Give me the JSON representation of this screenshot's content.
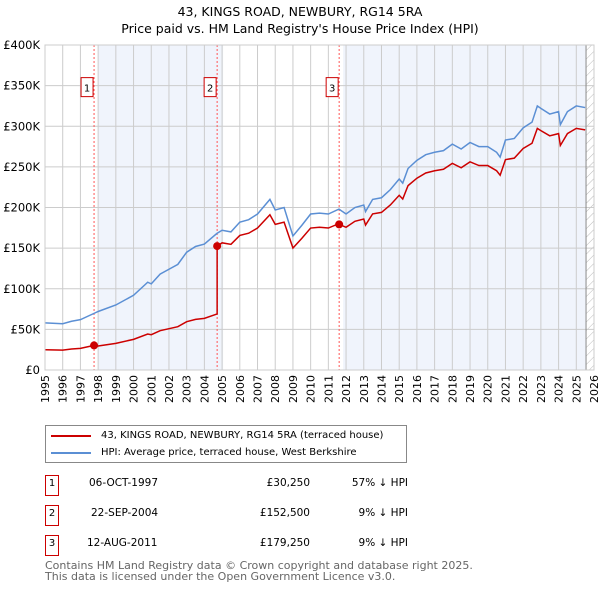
{
  "chart_data": {
    "type": "line",
    "title": "43, KINGS ROAD, NEWBURY, RG14 5RA",
    "subtitle": "Price paid vs. HM Land Registry's House Price Index (HPI)",
    "ylim": [
      0,
      400000
    ],
    "xlim": [
      1995,
      2026
    ],
    "y_ticks": [
      {
        "v": 0,
        "l": "£0"
      },
      {
        "v": 50000,
        "l": "£50K"
      },
      {
        "v": 100000,
        "l": "£100K"
      },
      {
        "v": 150000,
        "l": "£150K"
      },
      {
        "v": 200000,
        "l": "£200K"
      },
      {
        "v": 250000,
        "l": "£250K"
      },
      {
        "v": 300000,
        "l": "£300K"
      },
      {
        "v": 350000,
        "l": "£350K"
      },
      {
        "v": 400000,
        "l": "£400K"
      }
    ],
    "x_ticks": [
      "1995",
      "1996",
      "1997",
      "1998",
      "1999",
      "2000",
      "2001",
      "2002",
      "2003",
      "2004",
      "2005",
      "2006",
      "2007",
      "2008",
      "2009",
      "2010",
      "2011",
      "2012",
      "2013",
      "2014",
      "2015",
      "2016",
      "2017",
      "2018",
      "2019",
      "2020",
      "2021",
      "2022",
      "2023",
      "2024",
      "2025",
      "2026"
    ],
    "grid": true,
    "series": [
      {
        "name": "43, KINGS ROAD, NEWBURY, RG14 5RA (terraced house)",
        "color": "#cc0000"
      },
      {
        "name": "HPI: Average price, terraced house, West Berkshire",
        "color": "#5b8fd4",
        "x": [
          1995,
          1996,
          1996.5,
          1997,
          1997.8,
          1998,
          1999,
          2000,
          2000.8,
          2001,
          2001.5,
          2002,
          2002.5,
          2003,
          2003.5,
          2004,
          2004.7,
          2005,
          2005.5,
          2006,
          2006.5,
          2007,
          2007.7,
          2008,
          2008.5,
          2009,
          2009.5,
          2010,
          2010.5,
          2011,
          2011.6,
          2012,
          2012.5,
          2013,
          2013.1,
          2013.5,
          2014,
          2014.5,
          2015,
          2015.2,
          2015.5,
          2016,
          2016.5,
          2017,
          2017.5,
          2018,
          2018.5,
          2019,
          2019.5,
          2020,
          2020.5,
          2020.7,
          2021,
          2021.5,
          2022,
          2022.5,
          2022.8,
          2023,
          2023.5,
          2024,
          2024.1,
          2024.5,
          2025,
          2025.5
        ],
        "values": [
          58000,
          57000,
          60000,
          62000,
          70000,
          72000,
          80000,
          92000,
          108000,
          106000,
          118000,
          124000,
          130000,
          145000,
          152000,
          155000,
          168000,
          172000,
          170000,
          182000,
          185000,
          192000,
          210000,
          197000,
          200000,
          165000,
          178000,
          192000,
          193000,
          192000,
          198000,
          192000,
          200000,
          203000,
          195000,
          210000,
          212000,
          222000,
          235000,
          230000,
          248000,
          258000,
          265000,
          268000,
          270000,
          278000,
          272000,
          280000,
          275000,
          275000,
          268000,
          262000,
          283000,
          285000,
          298000,
          305000,
          325000,
          322000,
          315000,
          318000,
          302000,
          318000,
          325000,
          323000
        ]
      }
    ],
    "sales": [
      {
        "id": "1",
        "date": "06-OCT-1997",
        "x": 1997.77,
        "price": 30250,
        "price_label": "£30,250",
        "hpi_diff": "57% ↓ HPI"
      },
      {
        "id": "2",
        "date": "22-SEP-2004",
        "x": 2004.72,
        "price": 152500,
        "price_label": "£152,500",
        "hpi_diff": "9% ↓ HPI"
      },
      {
        "id": "3",
        "date": "12-AUG-2011",
        "x": 2011.61,
        "price": 179250,
        "price_label": "£179,250",
        "hpi_diff": "9% ↓ HPI"
      }
    ]
  },
  "footer": [
    "Contains HM Land Registry data © Crown copyright and database right 2025.",
    "This data is licensed under the Open Government Licence v3.0."
  ]
}
